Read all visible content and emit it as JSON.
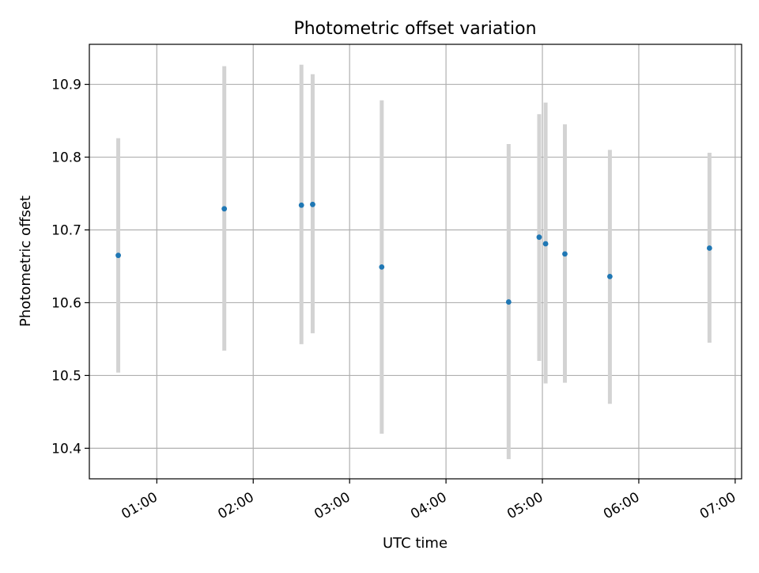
{
  "chart_data": {
    "type": "scatter",
    "title": "Photometric offset variation",
    "xlabel": "UTC time",
    "ylabel": "Photometric offset",
    "x_ticks": [
      "01:00",
      "02:00",
      "03:00",
      "04:00",
      "05:00",
      "06:00",
      "07:00"
    ],
    "y_ticks": [
      "10.4",
      "10.5",
      "10.6",
      "10.7",
      "10.8",
      "10.9"
    ],
    "xlim": [
      "00:18",
      "07:04"
    ],
    "ylim": [
      10.358,
      10.955
    ],
    "grid": true,
    "point_color": "#1f77b4",
    "errorbar_color": "#d3d3d3",
    "series": [
      {
        "x": [
          "00:36",
          "01:42",
          "02:30",
          "02:37",
          "03:20",
          "04:39",
          "04:58",
          "05:02",
          "05:14",
          "05:42",
          "06:44"
        ],
        "y": [
          10.665,
          10.729,
          10.734,
          10.735,
          10.649,
          10.601,
          10.69,
          10.681,
          10.667,
          10.636,
          10.675
        ],
        "y_low": [
          10.504,
          10.534,
          10.543,
          10.558,
          10.42,
          10.385,
          10.52,
          10.489,
          10.49,
          10.461,
          10.545
        ],
        "y_high": [
          10.826,
          10.925,
          10.927,
          10.914,
          10.878,
          10.818,
          10.859,
          10.875,
          10.845,
          10.81,
          10.806
        ]
      }
    ]
  }
}
